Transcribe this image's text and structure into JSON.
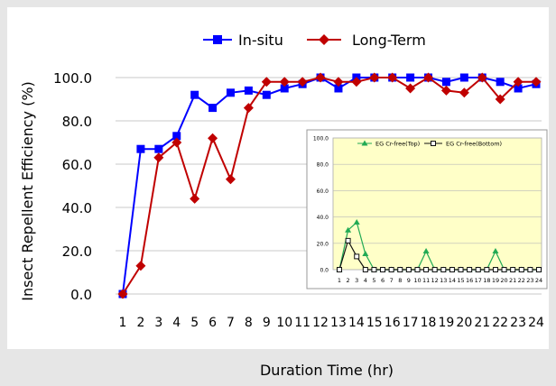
{
  "chart_data": [
    {
      "type": "line",
      "title": "",
      "xlabel": "Duration Time (hr)",
      "ylabel": "Insect Repellent Efficiency (%)",
      "ylim": [
        0,
        100
      ],
      "yticks": [
        "0.0",
        "20.0",
        "40.0",
        "60.0",
        "80.0",
        "100.0"
      ],
      "x": [
        1,
        2,
        3,
        4,
        5,
        6,
        7,
        8,
        9,
        10,
        11,
        12,
        13,
        14,
        15,
        16,
        17,
        18,
        19,
        20,
        21,
        22,
        23,
        24
      ],
      "grid": "horizontal",
      "legend": "top-center",
      "series": [
        {
          "name": "In-situ",
          "color": "#0000ff",
          "marker": "square",
          "values": [
            0,
            67,
            67,
            73,
            92,
            86,
            93,
            94,
            92,
            95,
            97,
            100,
            95,
            100,
            100,
            100,
            100,
            100,
            98,
            100,
            100,
            98,
            95,
            97
          ]
        },
        {
          "name": "Long-Term",
          "color": "#c00000",
          "marker": "diamond",
          "values": [
            0,
            13,
            63,
            70,
            44,
            72,
            53,
            86,
            98,
            98,
            98,
            100,
            98,
            98,
            100,
            100,
            95,
            100,
            94,
            93,
            100,
            90,
            98,
            98
          ]
        }
      ]
    },
    {
      "type": "line",
      "title": "",
      "xlabel": "",
      "ylabel": "",
      "ylim": [
        0,
        100
      ],
      "yticks": [
        "0.0",
        "20.0",
        "40.0",
        "60.0",
        "80.0",
        "100.0"
      ],
      "x": [
        1,
        2,
        3,
        4,
        5,
        6,
        7,
        8,
        9,
        10,
        11,
        12,
        13,
        14,
        15,
        16,
        17,
        18,
        19,
        20,
        21,
        22,
        23,
        24
      ],
      "grid": "horizontal",
      "legend": "top-left",
      "series": [
        {
          "name": "EG Cr-free(Top)",
          "color": "#22aa55",
          "marker": "triangle",
          "values": [
            0,
            30,
            36,
            12,
            0,
            0,
            0,
            0,
            0,
            0,
            14,
            0,
            0,
            0,
            0,
            0,
            0,
            0,
            14,
            0,
            0,
            0,
            0,
            0
          ]
        },
        {
          "name": "EG Cr-free(Bottom)",
          "color": "#111111",
          "marker": "open-square",
          "values": [
            0,
            22,
            10,
            0,
            0,
            0,
            0,
            0,
            0,
            0,
            0,
            0,
            0,
            0,
            0,
            0,
            0,
            0,
            0,
            0,
            0,
            0,
            0,
            0
          ]
        }
      ]
    }
  ]
}
